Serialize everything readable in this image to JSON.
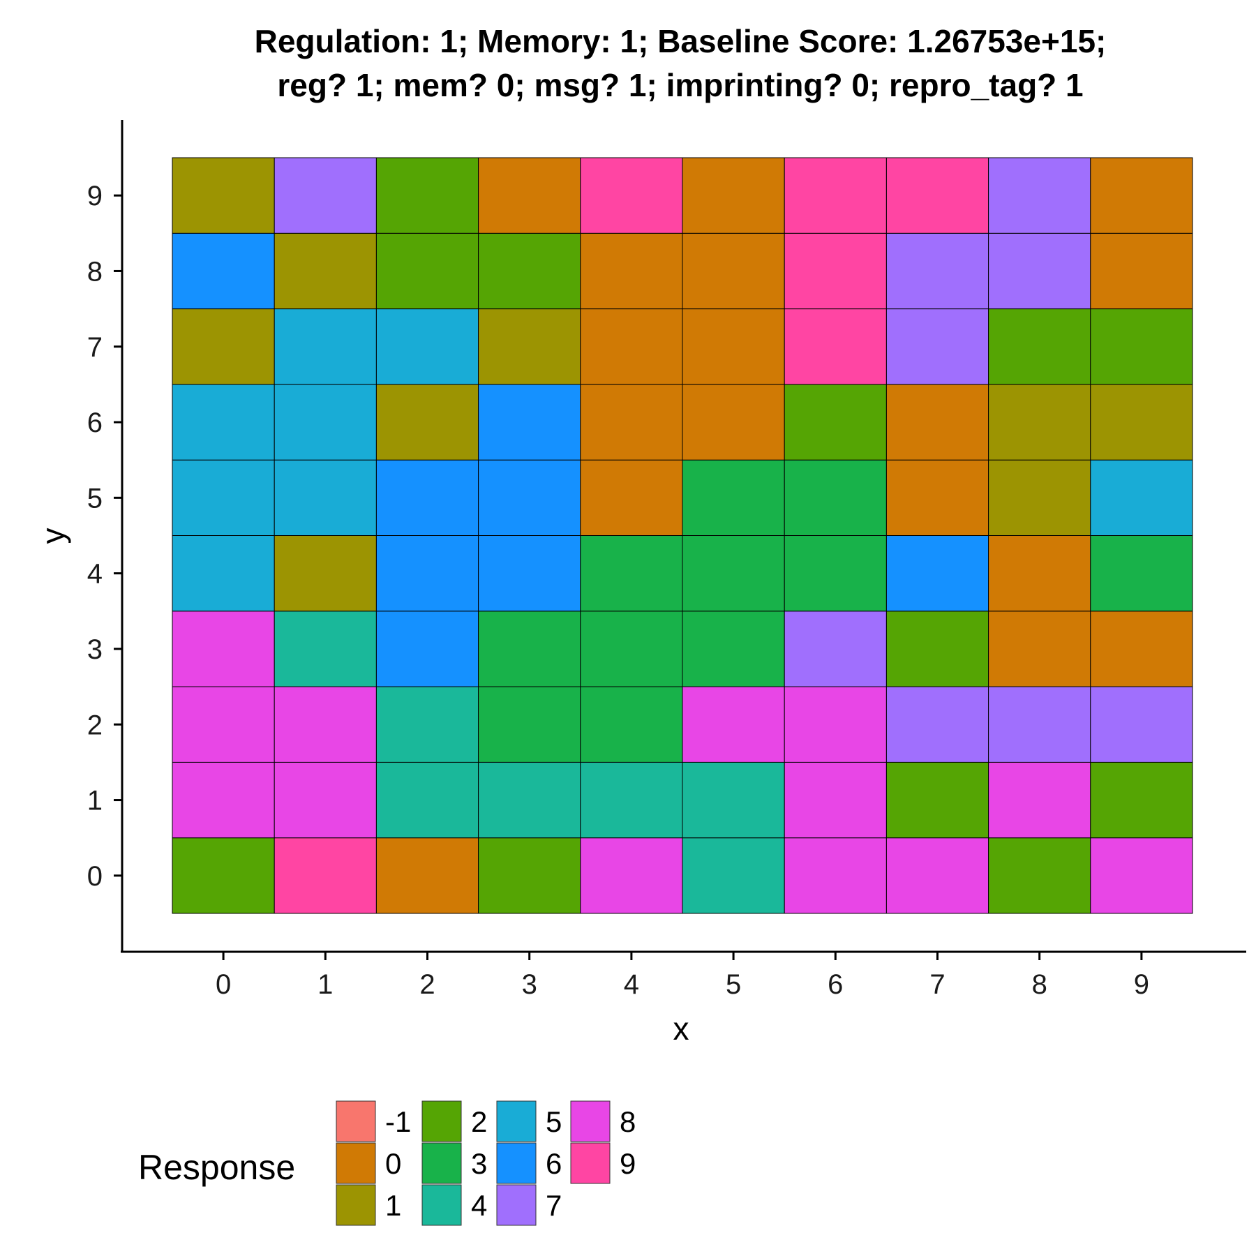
{
  "chart_data": {
    "type": "heatmap",
    "title_lines": [
      "Regulation: 1; Memory: 1; Baseline Score: 1.26753e+15;",
      "reg? 1; mem? 0; msg? 1; imprinting? 0; repro_tag? 1"
    ],
    "xlabel": "x",
    "ylabel": "y",
    "x_ticks": [
      "0",
      "1",
      "2",
      "3",
      "4",
      "5",
      "6",
      "7",
      "8",
      "9"
    ],
    "y_ticks": [
      "0",
      "1",
      "2",
      "3",
      "4",
      "5",
      "6",
      "7",
      "8",
      "9"
    ],
    "grid": false,
    "legend": {
      "title": "Response",
      "placement": "bottom",
      "entries": [
        {
          "label": "-1",
          "color": "#F8766D"
        },
        {
          "label": "0",
          "color": "#D07A05"
        },
        {
          "label": "1",
          "color": "#9C9402"
        },
        {
          "label": "2",
          "color": "#55A504"
        },
        {
          "label": "3",
          "color": "#18B24A"
        },
        {
          "label": "4",
          "color": "#1AB89A"
        },
        {
          "label": "5",
          "color": "#19ACD6"
        },
        {
          "label": "6",
          "color": "#1591FF"
        },
        {
          "label": "7",
          "color": "#A06FFD"
        },
        {
          "label": "8",
          "color": "#E846E6"
        },
        {
          "label": "9",
          "color": "#FF45A3"
        }
      ]
    },
    "grid_values": [
      [
        2,
        9,
        0,
        2,
        8,
        4,
        8,
        8,
        2,
        8
      ],
      [
        8,
        8,
        4,
        4,
        4,
        4,
        8,
        2,
        8,
        2
      ],
      [
        8,
        8,
        4,
        3,
        3,
        8,
        8,
        7,
        7,
        7
      ],
      [
        8,
        4,
        6,
        3,
        3,
        3,
        7,
        2,
        0,
        0
      ],
      [
        5,
        1,
        6,
        6,
        3,
        3,
        3,
        6,
        0,
        3
      ],
      [
        5,
        5,
        6,
        6,
        0,
        3,
        3,
        0,
        1,
        5
      ],
      [
        5,
        5,
        1,
        6,
        0,
        0,
        2,
        0,
        1,
        1
      ],
      [
        1,
        5,
        5,
        1,
        0,
        0,
        9,
        7,
        2,
        2
      ],
      [
        6,
        1,
        2,
        2,
        0,
        0,
        9,
        7,
        7,
        0
      ],
      [
        1,
        7,
        2,
        0,
        9,
        0,
        9,
        9,
        7,
        0
      ]
    ]
  }
}
